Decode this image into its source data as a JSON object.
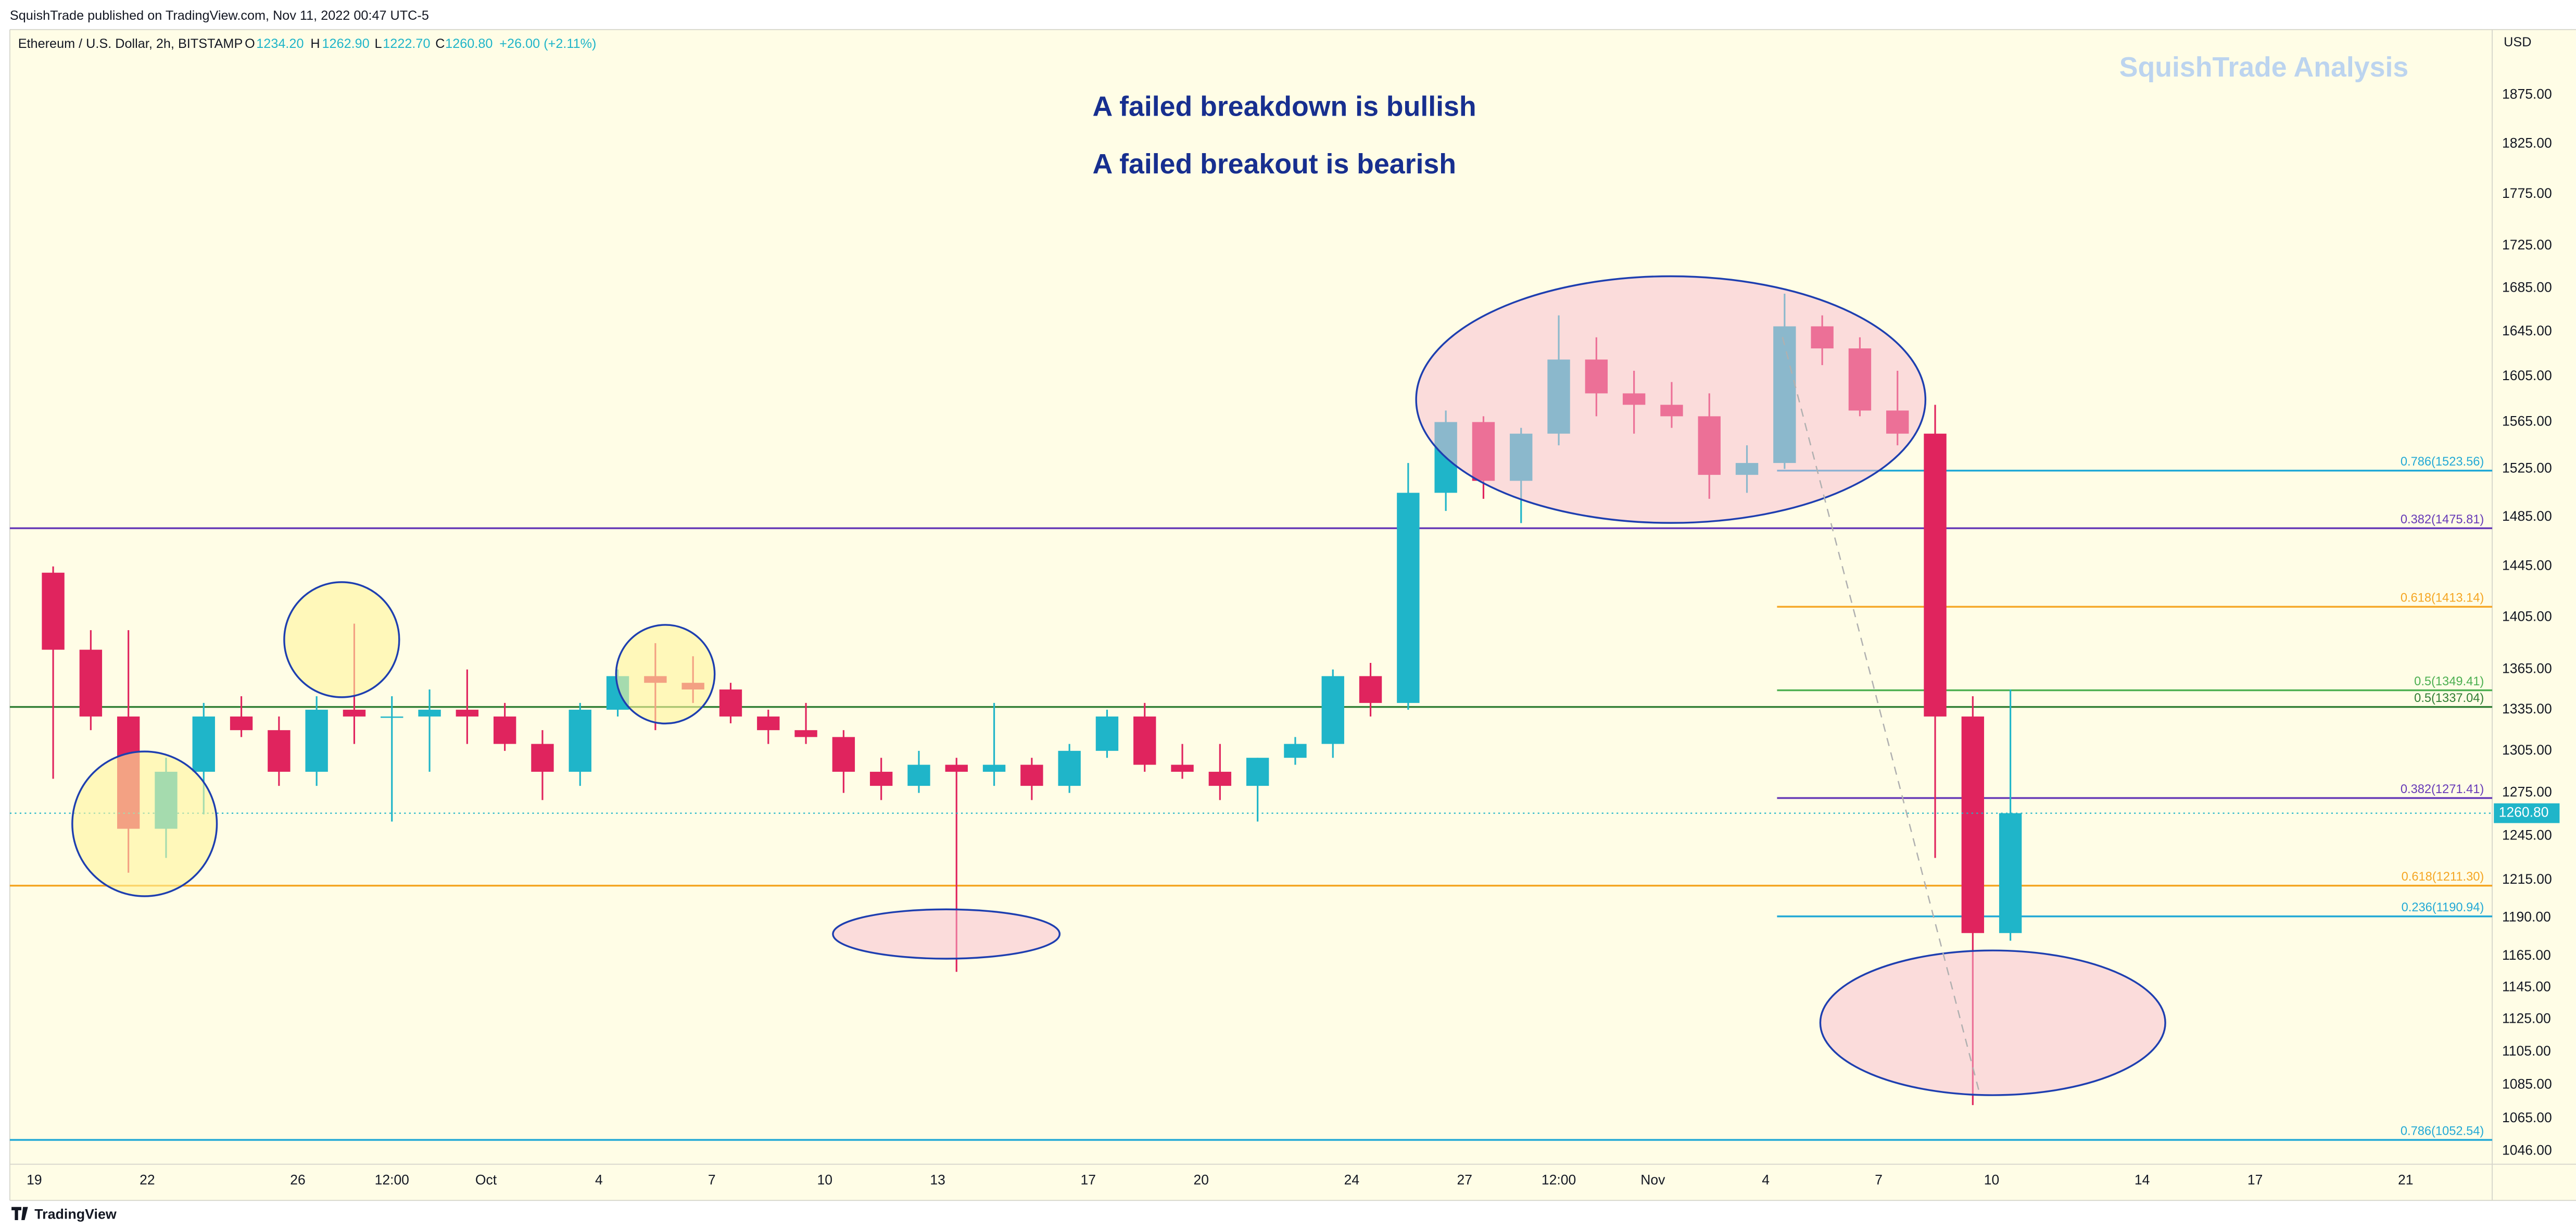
{
  "chart_data": {
    "type": "candlestick",
    "header": "SquishTrade published on TradingView.com, Nov 11, 2022 00:47 UTC-5",
    "legend": {
      "symbol": "Ethereum / U.S. Dollar, 2h, BITSTAMP",
      "o_label": "O",
      "o": "1234.20",
      "h_label": "H",
      "h": "1262.90",
      "l_label": "L",
      "l": "1222.70",
      "c_label": "C",
      "change": "+26.00 (+2.11%)"
    },
    "annotations": [
      "A failed breakdown is bullish",
      "A failed breakout is bearish"
    ],
    "watermark": "SquishTrade Analysis",
    "axis_unit": "USD",
    "footer": "TradingView",
    "log_scale": true,
    "up_color": "#1fb5c9",
    "down_color": "#e0245e",
    "x": [
      0,
      1,
      2,
      3,
      4,
      5,
      6,
      7,
      8,
      9,
      10,
      11,
      12,
      13,
      14,
      15,
      16,
      17,
      18,
      19,
      20,
      21,
      22,
      23,
      24,
      25,
      26,
      27,
      28,
      29,
      30,
      31,
      32,
      33,
      34,
      35,
      36,
      37,
      38,
      39,
      40,
      41,
      42,
      43,
      44,
      45,
      46,
      47,
      48,
      49,
      50,
      51,
      52
    ],
    "open": [
      1440,
      1380,
      1330,
      1250,
      1290,
      1330,
      1320,
      1290,
      1335,
      1330,
      1330,
      1335,
      1330,
      1310,
      1290,
      1335,
      1360,
      1355,
      1350,
      1330,
      1320,
      1315,
      1290,
      1280,
      1295,
      1290,
      1295,
      1280,
      1305,
      1330,
      1295,
      1290,
      1280,
      1300,
      1310,
      1360,
      1340,
      1505,
      1565,
      1515,
      1555,
      1620,
      1590,
      1580,
      1570,
      1520,
      1530,
      1650,
      1630,
      1575,
      1555,
      1330,
      1180
    ],
    "high": [
      1445,
      1395,
      1395,
      1300,
      1340,
      1345,
      1330,
      1345,
      1400,
      1345,
      1350,
      1365,
      1340,
      1320,
      1340,
      1365,
      1385,
      1375,
      1355,
      1335,
      1340,
      1320,
      1300,
      1305,
      1300,
      1340,
      1300,
      1310,
      1335,
      1340,
      1310,
      1310,
      1300,
      1315,
      1365,
      1370,
      1530,
      1575,
      1570,
      1560,
      1660,
      1640,
      1610,
      1600,
      1590,
      1545,
      1680,
      1660,
      1640,
      1610,
      1580,
      1345,
      1350
    ],
    "low": [
      1285,
      1320,
      1220,
      1230,
      1260,
      1315,
      1280,
      1280,
      1310,
      1255,
      1290,
      1310,
      1305,
      1270,
      1280,
      1330,
      1320,
      1340,
      1325,
      1310,
      1310,
      1275,
      1270,
      1275,
      1155,
      1280,
      1270,
      1275,
      1300,
      1290,
      1285,
      1270,
      1255,
      1295,
      1300,
      1330,
      1335,
      1490,
      1500,
      1480,
      1545,
      1570,
      1555,
      1560,
      1500,
      1505,
      1525,
      1615,
      1570,
      1545,
      1230,
      1073,
      1175
    ],
    "close": [
      1380,
      1330,
      1250,
      1290,
      1330,
      1320,
      1290,
      1335,
      1330,
      1330,
      1335,
      1330,
      1310,
      1290,
      1335,
      1360,
      1355,
      1350,
      1330,
      1320,
      1315,
      1290,
      1280,
      1295,
      1290,
      1295,
      1280,
      1305,
      1330,
      1295,
      1290,
      1280,
      1300,
      1310,
      1360,
      1340,
      1505,
      1565,
      1515,
      1555,
      1620,
      1590,
      1580,
      1570,
      1520,
      1530,
      1650,
      1630,
      1575,
      1555,
      1330,
      1180,
      1260.8
    ],
    "last_price": {
      "value": 1260.8,
      "label": "1260.80"
    },
    "xlim": [
      -0.65,
      65.3
    ],
    "xticks": [
      {
        "value": 0,
        "label": "19"
      },
      {
        "value": 3,
        "label": "22"
      },
      {
        "value": 7,
        "label": "26"
      },
      {
        "value": 9.5,
        "label": "12:00"
      },
      {
        "value": 12,
        "label": "Oct"
      },
      {
        "value": 15,
        "label": "4"
      },
      {
        "value": 18,
        "label": "7"
      },
      {
        "value": 21,
        "label": "10"
      },
      {
        "value": 24,
        "label": "13"
      },
      {
        "value": 28,
        "label": "17"
      },
      {
        "value": 31,
        "label": "20"
      },
      {
        "value": 35,
        "label": "24"
      },
      {
        "value": 38,
        "label": "27"
      },
      {
        "value": 40.5,
        "label": "12:00"
      },
      {
        "value": 43,
        "label": "Nov"
      },
      {
        "value": 46,
        "label": "4"
      },
      {
        "value": 49,
        "label": "7"
      },
      {
        "value": 52,
        "label": "10"
      },
      {
        "value": 56,
        "label": "14"
      },
      {
        "value": 59,
        "label": "17"
      },
      {
        "value": 63,
        "label": "21"
      }
    ],
    "ylim": [
      1038.5,
      1944
    ],
    "yticks": [
      {
        "value": 1875,
        "label": "1875.00"
      },
      {
        "value": 1825,
        "label": "1825.00"
      },
      {
        "value": 1775,
        "label": "1775.00"
      },
      {
        "value": 1725,
        "label": "1725.00"
      },
      {
        "value": 1685,
        "label": "1685.00"
      },
      {
        "value": 1645,
        "label": "1645.00"
      },
      {
        "value": 1605,
        "label": "1605.00"
      },
      {
        "value": 1565,
        "label": "1565.00"
      },
      {
        "value": 1525,
        "label": "1525.00"
      },
      {
        "value": 1485,
        "label": "1485.00"
      },
      {
        "value": 1445,
        "label": "1445.00"
      },
      {
        "value": 1405,
        "label": "1405.00"
      },
      {
        "value": 1365,
        "label": "1365.00"
      },
      {
        "value": 1335,
        "label": "1335.00"
      },
      {
        "value": 1305,
        "label": "1305.00"
      },
      {
        "value": 1275,
        "label": "1275.00"
      },
      {
        "value": 1245,
        "label": "1245.00"
      },
      {
        "value": 1215,
        "label": "1215.00"
      },
      {
        "value": 1190,
        "label": "1190.00"
      },
      {
        "value": 1165,
        "label": "1165.00"
      },
      {
        "value": 1145,
        "label": "1145.00"
      },
      {
        "value": 1125,
        "label": "1125.00"
      },
      {
        "value": 1105,
        "label": "1105.00"
      },
      {
        "value": 1085,
        "label": "1085.00"
      },
      {
        "value": 1065,
        "label": "1065.00"
      },
      {
        "value": 1046,
        "label": "1046.00"
      }
    ],
    "levels": [
      {
        "label": "0.786(1523.56)",
        "value": 1523.56,
        "color": "#22a9d6",
        "from": 46.3
      },
      {
        "label": "0.382(1475.81)",
        "value": 1475.81,
        "color": "#673ab7"
      },
      {
        "label": "0.618(1413.14)",
        "value": 1413.14,
        "color": "#f5a623",
        "from": 46.3
      },
      {
        "label": "0.5(1349.41)",
        "value": 1349.41,
        "color": "#4caf50",
        "from": 46.3
      },
      {
        "label": "0.5(1337.04)",
        "value": 1337.04,
        "color": "#2e7d32"
      },
      {
        "label": "0.382(1271.41)",
        "value": 1271.41,
        "color": "#673ab7",
        "from": 46.3
      },
      {
        "label": "0.618(1211.30)",
        "value": 1211.3,
        "color": "#f5a623"
      },
      {
        "label": "0.236(1190.94)",
        "value": 1190.94,
        "color": "#22a9d6",
        "from": 46.3
      },
      {
        "label": "0.786(1052.54)",
        "value": 1052.54,
        "color": "#22a9d6"
      }
    ]
  }
}
